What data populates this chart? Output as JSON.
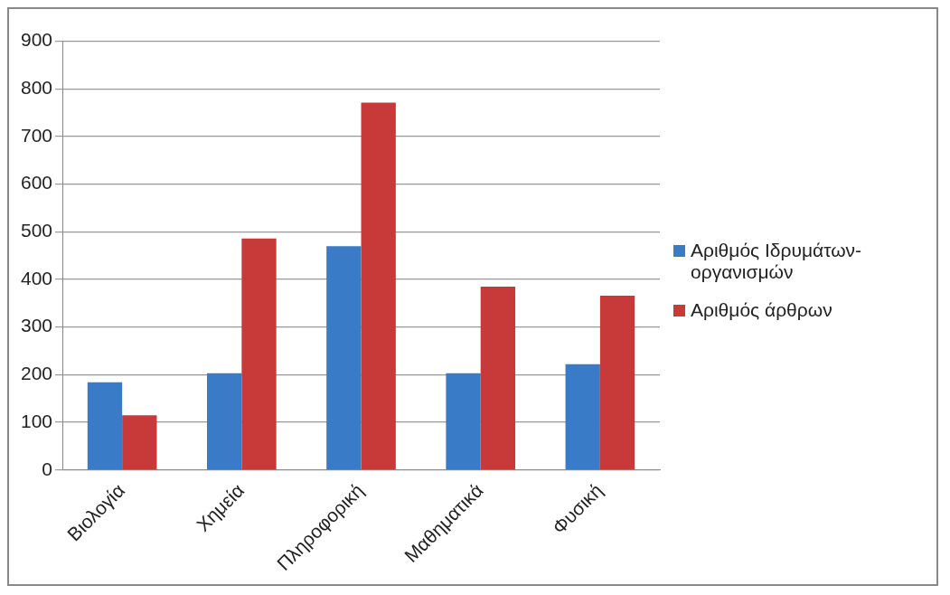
{
  "chart_data": {
    "type": "bar",
    "categories": [
      "Βιολογία",
      "Χημεία",
      "Πληροφορική",
      "Μαθηματικά",
      "Φυσική"
    ],
    "series": [
      {
        "name": "Αριθμός Ιδρυμάτων-οργανισμών",
        "color": "#3a7bc8",
        "values": [
          184,
          203,
          470,
          203,
          222
        ]
      },
      {
        "name": "Αριθμός άρθρων",
        "color": "#c83a3a",
        "values": [
          115,
          486,
          771,
          385,
          366
        ]
      }
    ],
    "ylim": [
      0,
      900
    ],
    "yticks": [
      0,
      100,
      200,
      300,
      400,
      500,
      600,
      700,
      800,
      900
    ],
    "grid": "y",
    "legend": "right"
  }
}
